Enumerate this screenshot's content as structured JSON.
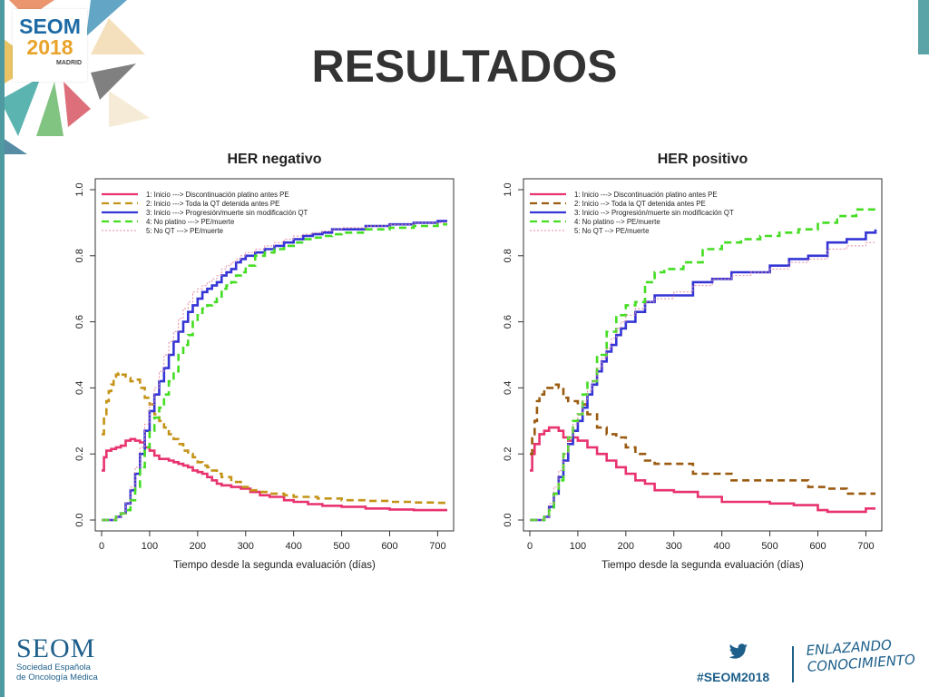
{
  "slide": {
    "title": "RESULTADOS",
    "event_logo": {
      "line1": "SEOM",
      "line2": "2018",
      "line3": "MADRID"
    },
    "footer": {
      "org_logo": "SEOM",
      "org_name_line1": "Sociedad Española",
      "org_name_line2": "de Oncología Médica",
      "hashtag": "#SEOM2018",
      "tagline_line1": "ENLAZANDO",
      "tagline_line2": "CONOCIMIENTO",
      "icon": "twitter-bird-icon"
    },
    "colors": {
      "accent_teal": "#4e9aa0",
      "brand_blue": "#1d5f8a",
      "brand_orange": "#e9a32b"
    }
  },
  "chart_data": [
    {
      "type": "line",
      "title": "HER negativo",
      "xlabel": "Tiempo desde la segunda evaluación (días)",
      "ylabel": "",
      "xlim": [
        0,
        720
      ],
      "ylim": [
        0,
        1
      ],
      "xticks": [
        "0",
        "100",
        "200",
        "300",
        "400",
        "500",
        "600",
        "700"
      ],
      "yticks": [
        "0.0",
        "0.2",
        "0.4",
        "0.6",
        "0.8",
        "1.0"
      ],
      "legend_position": "top-left",
      "series": [
        {
          "name": "1: Inicio ---> Discontinuación platino antes PE",
          "color": "#e8336e",
          "dash": "solid",
          "x": [
            0,
            5,
            10,
            20,
            30,
            40,
            50,
            60,
            70,
            80,
            90,
            100,
            110,
            120,
            130,
            140,
            150,
            160,
            170,
            180,
            190,
            200,
            210,
            220,
            230,
            240,
            250,
            270,
            290,
            310,
            330,
            350,
            380,
            400,
            430,
            460,
            500,
            550,
            600,
            650,
            700,
            720
          ],
          "y": [
            0.15,
            0.19,
            0.21,
            0.215,
            0.22,
            0.225,
            0.24,
            0.245,
            0.24,
            0.235,
            0.22,
            0.21,
            0.195,
            0.185,
            0.185,
            0.18,
            0.175,
            0.17,
            0.165,
            0.16,
            0.15,
            0.145,
            0.14,
            0.13,
            0.12,
            0.11,
            0.105,
            0.1,
            0.095,
            0.085,
            0.075,
            0.07,
            0.06,
            0.055,
            0.048,
            0.043,
            0.04,
            0.035,
            0.032,
            0.03,
            0.03,
            0.03
          ]
        },
        {
          "name": "2: Inicio ---> Toda la QT detenida antes PE",
          "color": "#c49418",
          "dash": "dashed",
          "x": [
            0,
            5,
            10,
            15,
            20,
            25,
            30,
            35,
            40,
            50,
            60,
            70,
            80,
            90,
            100,
            110,
            120,
            130,
            140,
            150,
            160,
            170,
            180,
            190,
            200,
            210,
            220,
            230,
            240,
            250,
            270,
            290,
            310,
            330,
            350,
            380,
            400,
            450,
            500,
            550,
            600,
            650,
            700,
            720
          ],
          "y": [
            0.26,
            0.32,
            0.36,
            0.39,
            0.41,
            0.43,
            0.44,
            0.445,
            0.44,
            0.43,
            0.42,
            0.425,
            0.4,
            0.37,
            0.35,
            0.32,
            0.3,
            0.28,
            0.26,
            0.245,
            0.23,
            0.21,
            0.2,
            0.19,
            0.175,
            0.165,
            0.16,
            0.15,
            0.14,
            0.13,
            0.115,
            0.1,
            0.09,
            0.085,
            0.08,
            0.075,
            0.07,
            0.065,
            0.06,
            0.058,
            0.055,
            0.053,
            0.052,
            0.052
          ]
        },
        {
          "name": "3: Inicio ---> Progresión/muerte sin modificación QT",
          "color": "#3535d6",
          "dash": "solid",
          "x": [
            0,
            10,
            20,
            30,
            40,
            50,
            60,
            70,
            80,
            90,
            100,
            110,
            120,
            130,
            140,
            150,
            160,
            170,
            180,
            190,
            200,
            210,
            220,
            230,
            240,
            250,
            260,
            270,
            280,
            290,
            300,
            320,
            340,
            360,
            380,
            400,
            420,
            440,
            460,
            480,
            500,
            550,
            600,
            650,
            700,
            720
          ],
          "y": [
            0.0,
            0.0,
            0.0,
            0.01,
            0.02,
            0.05,
            0.09,
            0.14,
            0.2,
            0.27,
            0.33,
            0.38,
            0.42,
            0.46,
            0.5,
            0.54,
            0.57,
            0.6,
            0.63,
            0.65,
            0.67,
            0.69,
            0.7,
            0.71,
            0.72,
            0.74,
            0.75,
            0.76,
            0.78,
            0.79,
            0.8,
            0.81,
            0.82,
            0.83,
            0.84,
            0.85,
            0.86,
            0.865,
            0.87,
            0.88,
            0.88,
            0.89,
            0.895,
            0.9,
            0.905,
            0.905
          ]
        },
        {
          "name": "4: No platino ---> PE/muerte",
          "color": "#44dd22",
          "dash": "dashed",
          "x": [
            0,
            10,
            20,
            30,
            40,
            50,
            60,
            70,
            80,
            90,
            100,
            110,
            120,
            130,
            140,
            150,
            160,
            170,
            180,
            190,
            200,
            210,
            220,
            230,
            240,
            250,
            260,
            270,
            280,
            290,
            300,
            320,
            340,
            360,
            380,
            400,
            420,
            440,
            460,
            480,
            500,
            550,
            600,
            650,
            700,
            720
          ],
          "y": [
            0.0,
            0.0,
            0.0,
            0.01,
            0.02,
            0.03,
            0.06,
            0.1,
            0.16,
            0.22,
            0.27,
            0.31,
            0.34,
            0.38,
            0.42,
            0.45,
            0.5,
            0.53,
            0.56,
            0.6,
            0.62,
            0.64,
            0.65,
            0.66,
            0.67,
            0.7,
            0.71,
            0.72,
            0.74,
            0.75,
            0.77,
            0.8,
            0.81,
            0.82,
            0.83,
            0.84,
            0.85,
            0.855,
            0.86,
            0.865,
            0.87,
            0.88,
            0.885,
            0.89,
            0.895,
            0.895
          ]
        },
        {
          "name": "5: No QT ---> PE/muerte",
          "color": "#e58aa0",
          "dash": "dotted",
          "x": [
            0,
            10,
            20,
            30,
            40,
            50,
            60,
            70,
            80,
            90,
            100,
            110,
            120,
            130,
            140,
            150,
            160,
            170,
            180,
            190,
            200,
            210,
            220,
            230,
            240,
            250,
            260,
            270,
            280,
            290,
            300,
            320,
            340,
            360,
            380,
            400,
            420,
            440,
            460,
            480,
            500,
            550,
            600,
            650,
            700,
            720
          ],
          "y": [
            0.0,
            0.0,
            0.0,
            0.01,
            0.02,
            0.05,
            0.1,
            0.16,
            0.22,
            0.29,
            0.35,
            0.4,
            0.45,
            0.5,
            0.54,
            0.57,
            0.61,
            0.64,
            0.66,
            0.69,
            0.7,
            0.71,
            0.72,
            0.73,
            0.74,
            0.76,
            0.77,
            0.78,
            0.79,
            0.8,
            0.81,
            0.82,
            0.83,
            0.84,
            0.85,
            0.86,
            0.865,
            0.87,
            0.875,
            0.88,
            0.885,
            0.89,
            0.895,
            0.9,
            0.9,
            0.9
          ]
        }
      ]
    },
    {
      "type": "line",
      "title": "HER positivo",
      "xlabel": "Tiempo desde la segunda evaluación (días)",
      "ylabel": "",
      "xlim": [
        0,
        720
      ],
      "ylim": [
        0,
        1
      ],
      "xticks": [
        "0",
        "100",
        "200",
        "300",
        "400",
        "500",
        "600",
        "700"
      ],
      "yticks": [
        "0.0",
        "0.2",
        "0.4",
        "0.6",
        "0.8",
        "1.0"
      ],
      "legend_position": "top-left",
      "series": [
        {
          "name": "1: Inicio ---> Discontinuación platino antes PE",
          "color": "#e8336e",
          "dash": "solid",
          "x": [
            0,
            5,
            10,
            20,
            30,
            40,
            50,
            60,
            70,
            80,
            90,
            100,
            120,
            140,
            160,
            180,
            200,
            220,
            240,
            260,
            300,
            350,
            400,
            450,
            500,
            550,
            600,
            620,
            650,
            700,
            720
          ],
          "y": [
            0.15,
            0.2,
            0.23,
            0.26,
            0.27,
            0.28,
            0.28,
            0.27,
            0.25,
            0.24,
            0.25,
            0.24,
            0.22,
            0.2,
            0.18,
            0.16,
            0.14,
            0.12,
            0.11,
            0.09,
            0.085,
            0.07,
            0.055,
            0.055,
            0.05,
            0.045,
            0.03,
            0.025,
            0.025,
            0.035,
            0.035
          ]
        },
        {
          "name": "2: Inicio --> Toda la QT detenida antes PE",
          "color": "#9a5a10",
          "dash": "dashed",
          "x": [
            0,
            5,
            10,
            15,
            20,
            30,
            40,
            50,
            60,
            70,
            80,
            90,
            100,
            120,
            140,
            160,
            180,
            200,
            220,
            240,
            260,
            300,
            340,
            380,
            420,
            480,
            540,
            580,
            620,
            660,
            700,
            720
          ],
          "y": [
            0.2,
            0.26,
            0.3,
            0.36,
            0.38,
            0.4,
            0.4,
            0.41,
            0.4,
            0.37,
            0.36,
            0.36,
            0.35,
            0.32,
            0.28,
            0.26,
            0.25,
            0.22,
            0.2,
            0.18,
            0.17,
            0.17,
            0.14,
            0.14,
            0.12,
            0.12,
            0.12,
            0.1,
            0.095,
            0.08,
            0.08,
            0.08
          ]
        },
        {
          "name": "3: Inicio --> Progresión/muerte sin modificación QT",
          "color": "#3535d6",
          "dash": "solid",
          "x": [
            0,
            10,
            20,
            30,
            40,
            50,
            60,
            70,
            80,
            90,
            100,
            110,
            120,
            130,
            140,
            150,
            160,
            170,
            180,
            190,
            200,
            220,
            240,
            260,
            300,
            340,
            380,
            420,
            460,
            500,
            540,
            580,
            620,
            660,
            700,
            720
          ],
          "y": [
            0.0,
            0.0,
            0.0,
            0.01,
            0.04,
            0.08,
            0.13,
            0.18,
            0.23,
            0.27,
            0.3,
            0.34,
            0.38,
            0.41,
            0.45,
            0.48,
            0.51,
            0.53,
            0.56,
            0.58,
            0.6,
            0.63,
            0.66,
            0.68,
            0.68,
            0.72,
            0.73,
            0.75,
            0.75,
            0.77,
            0.79,
            0.8,
            0.84,
            0.85,
            0.87,
            0.88
          ]
        },
        {
          "name": "4: No platino --> PE/muerte",
          "color": "#44dd22",
          "dash": "dashed",
          "x": [
            0,
            10,
            20,
            30,
            40,
            50,
            60,
            70,
            80,
            90,
            100,
            110,
            120,
            140,
            160,
            180,
            200,
            220,
            240,
            260,
            280,
            320,
            360,
            400,
            440,
            480,
            520,
            560,
            600,
            640,
            680,
            720
          ],
          "y": [
            0.0,
            0.0,
            0.0,
            0.01,
            0.03,
            0.08,
            0.12,
            0.2,
            0.25,
            0.3,
            0.32,
            0.38,
            0.42,
            0.5,
            0.57,
            0.62,
            0.65,
            0.66,
            0.72,
            0.75,
            0.76,
            0.78,
            0.82,
            0.84,
            0.85,
            0.86,
            0.87,
            0.88,
            0.9,
            0.92,
            0.94,
            0.94
          ]
        },
        {
          "name": "5: No QT --> PE/muerte",
          "color": "#e58aa0",
          "dash": "dotted",
          "x": [
            0,
            10,
            20,
            30,
            40,
            50,
            60,
            70,
            80,
            90,
            100,
            110,
            120,
            130,
            140,
            150,
            160,
            170,
            180,
            190,
            200,
            220,
            240,
            260,
            300,
            340,
            380,
            420,
            460,
            500,
            540,
            580,
            620,
            660,
            700,
            720
          ],
          "y": [
            0.0,
            0.0,
            0.0,
            0.01,
            0.05,
            0.1,
            0.15,
            0.2,
            0.25,
            0.29,
            0.32,
            0.36,
            0.39,
            0.42,
            0.46,
            0.49,
            0.52,
            0.55,
            0.58,
            0.6,
            0.62,
            0.64,
            0.66,
            0.67,
            0.69,
            0.71,
            0.73,
            0.74,
            0.75,
            0.76,
            0.78,
            0.79,
            0.82,
            0.83,
            0.84,
            0.84
          ]
        }
      ]
    }
  ]
}
